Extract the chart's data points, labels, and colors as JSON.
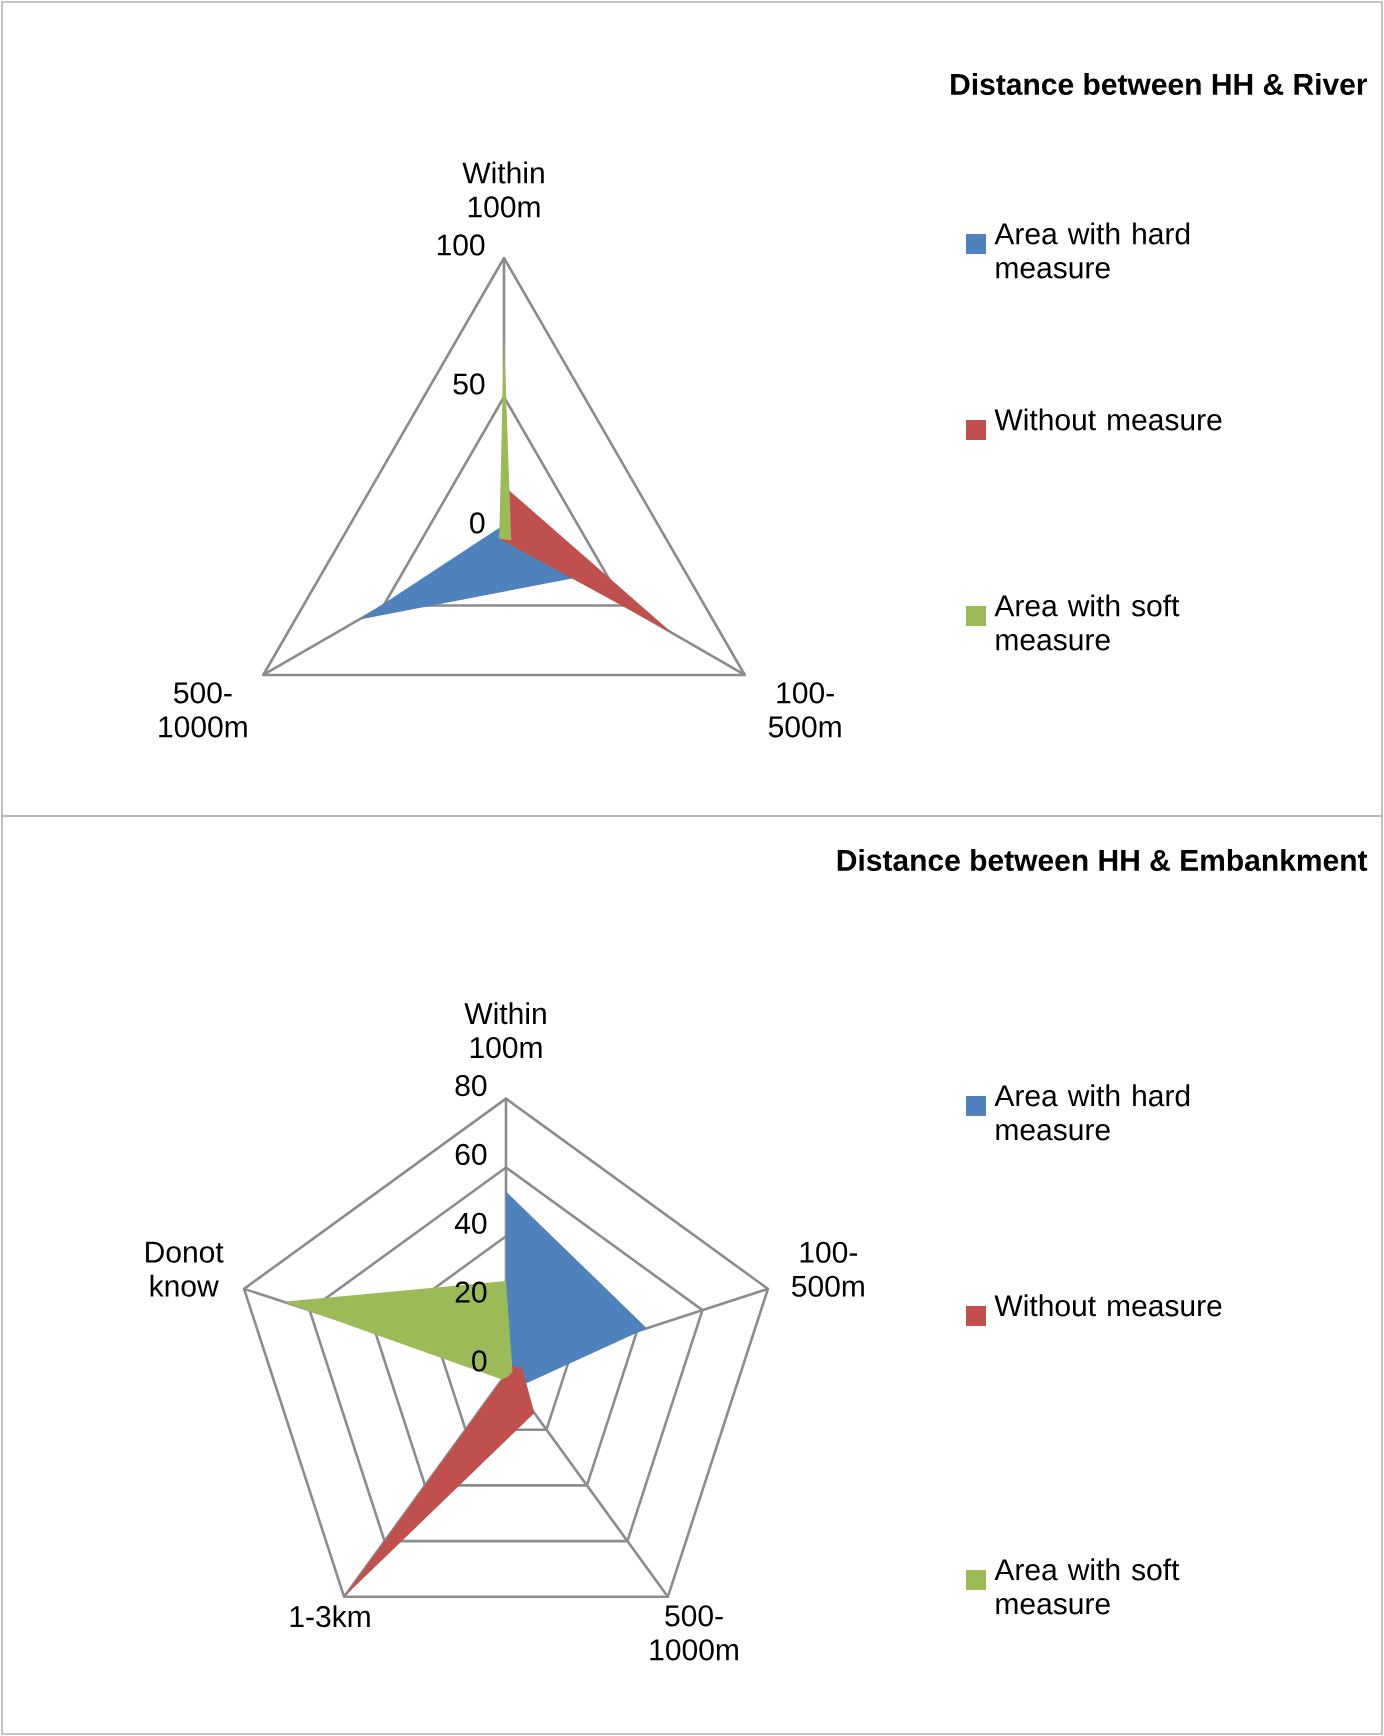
{
  "chart_data": [
    {
      "type": "radar",
      "title": "Distance between HH & River",
      "categories": [
        "Within 100m",
        "100-500m",
        "500-1000m"
      ],
      "series": [
        {
          "name": "Area with hard measure",
          "color": "#4f81bd",
          "values": [
            4,
            30,
            60
          ]
        },
        {
          "name": "Without measure",
          "color": "#c0504d",
          "values": [
            18,
            70,
            2
          ]
        },
        {
          "name": "Area with soft measure",
          "color": "#9bbb59",
          "values": [
            72,
            3,
            2
          ]
        }
      ],
      "ylim": [
        0,
        100
      ],
      "yticks": [
        0,
        50,
        100
      ],
      "grid": true,
      "legend": "right"
    },
    {
      "type": "radar",
      "title": "Distance between HH & Embankment",
      "categories": [
        "Within 100m",
        "100-500m",
        "500-1000m",
        "1-3km",
        "Donot know"
      ],
      "series": [
        {
          "name": "Area with hard measure",
          "color": "#4f81bd",
          "values": [
            53,
            43,
            5,
            2,
            0
          ]
        },
        {
          "name": "Without measure",
          "color": "#c0504d",
          "values": [
            3,
            5,
            14,
            80,
            0
          ]
        },
        {
          "name": "Area with soft measure",
          "color": "#9bbb59",
          "values": [
            27,
            2,
            1,
            2,
            68
          ]
        }
      ],
      "ylim": [
        0,
        80
      ],
      "yticks": [
        0,
        20,
        40,
        60,
        80
      ],
      "grid": true,
      "legend": "right"
    }
  ]
}
